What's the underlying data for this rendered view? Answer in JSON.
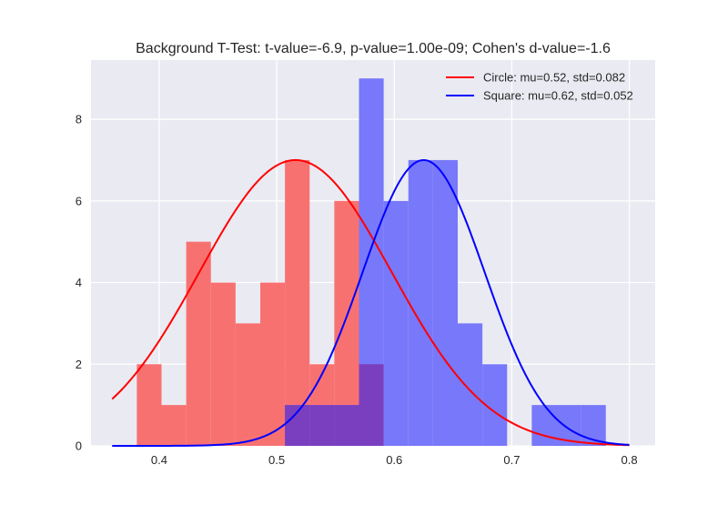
{
  "chart_data": {
    "type": "bar",
    "title": "Background T-Test: t-value=-6.9, p-value=1.00e-09; Cohen's d-value=-1.6",
    "xlabel": "",
    "ylabel": "",
    "xlim": [
      0.342,
      0.822
    ],
    "ylim": [
      0,
      9.45
    ],
    "grid": true,
    "legend_position": "top-right",
    "x_ticks": [
      0.4,
      0.5,
      0.6,
      0.7,
      0.8
    ],
    "x_tick_labels": [
      "0.4",
      "0.5",
      "0.6",
      "0.7",
      "0.8"
    ],
    "y_ticks": [
      0,
      2,
      4,
      6,
      8
    ],
    "y_tick_labels": [
      "0",
      "2",
      "4",
      "6",
      "8"
    ],
    "histograms": [
      {
        "name": "Circle",
        "color": "#f87171",
        "bin_width": 0.021,
        "bin_starts": [
          0.381,
          0.402,
          0.423,
          0.444,
          0.465,
          0.486,
          0.507,
          0.528,
          0.549,
          0.57,
          0.591,
          0.612,
          0.633,
          0.654,
          0.675,
          0.696,
          0.717,
          0.738,
          0.759
        ],
        "counts": [
          2,
          1,
          5,
          4,
          3,
          4,
          7,
          2,
          6,
          2,
          0,
          0,
          0,
          0,
          0,
          0,
          0,
          0,
          0
        ]
      },
      {
        "name": "Square",
        "color": "#7878fa",
        "bin_width": 0.021,
        "bin_starts": [
          0.381,
          0.402,
          0.423,
          0.444,
          0.465,
          0.486,
          0.507,
          0.528,
          0.549,
          0.57,
          0.591,
          0.612,
          0.633,
          0.654,
          0.675,
          0.696,
          0.717,
          0.738,
          0.759
        ],
        "counts": [
          0,
          0,
          0,
          0,
          0,
          0,
          1,
          1,
          1,
          9,
          6,
          7,
          7,
          3,
          2,
          0,
          1,
          1,
          1
        ]
      }
    ],
    "overlap_color": "#7a3fbf",
    "curves": [
      {
        "name": "Circle: mu=0.52, std=0.082",
        "color": "#ff0000",
        "mu": 0.516,
        "std": 0.082,
        "peak": 7.0,
        "x_range": [
          0.36,
          0.8
        ]
      },
      {
        "name": "Square: mu=0.62, std=0.052",
        "color": "#0000ff",
        "mu": 0.625,
        "std": 0.052,
        "peak": 7.0,
        "x_range": [
          0.36,
          0.8
        ]
      }
    ]
  }
}
